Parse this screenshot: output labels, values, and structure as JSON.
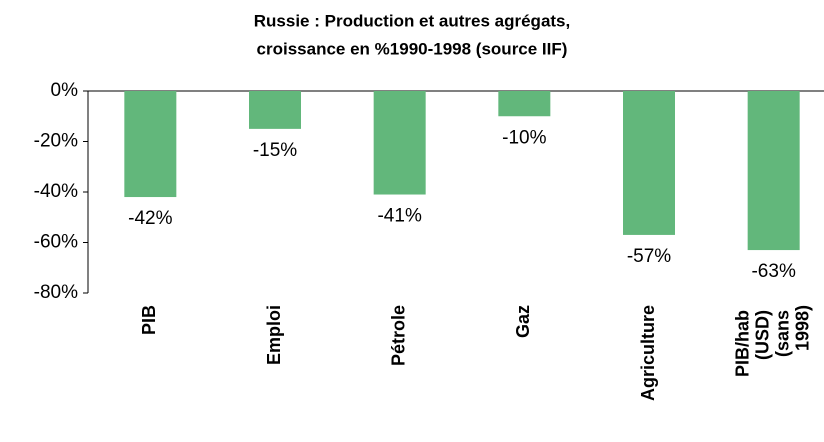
{
  "chart_data": {
    "type": "bar",
    "title": [
      "Russie : Production et autres agrégats,",
      "croissance en %1990-1998 (source IIF)"
    ],
    "categories": [
      "PIB",
      "Emploi",
      "Pétrole",
      "Gaz",
      "Agriculture",
      "PIB/hab (USD) (sans 1998)"
    ],
    "values": [
      -42,
      -15,
      -41,
      -10,
      -57,
      -63
    ],
    "value_labels": [
      "-42%",
      "-15%",
      "-41%",
      "-10%",
      "-57%",
      "-63%"
    ],
    "color": "#62b77b",
    "ylim": [
      -80,
      0
    ],
    "yticks": [
      {
        "value": 0,
        "label": "0%"
      },
      {
        "value": -20,
        "label": "-20%"
      },
      {
        "value": -40,
        "label": "-40%"
      },
      {
        "value": -60,
        "label": "-60%"
      },
      {
        "value": -80,
        "label": "-80%"
      }
    ]
  }
}
